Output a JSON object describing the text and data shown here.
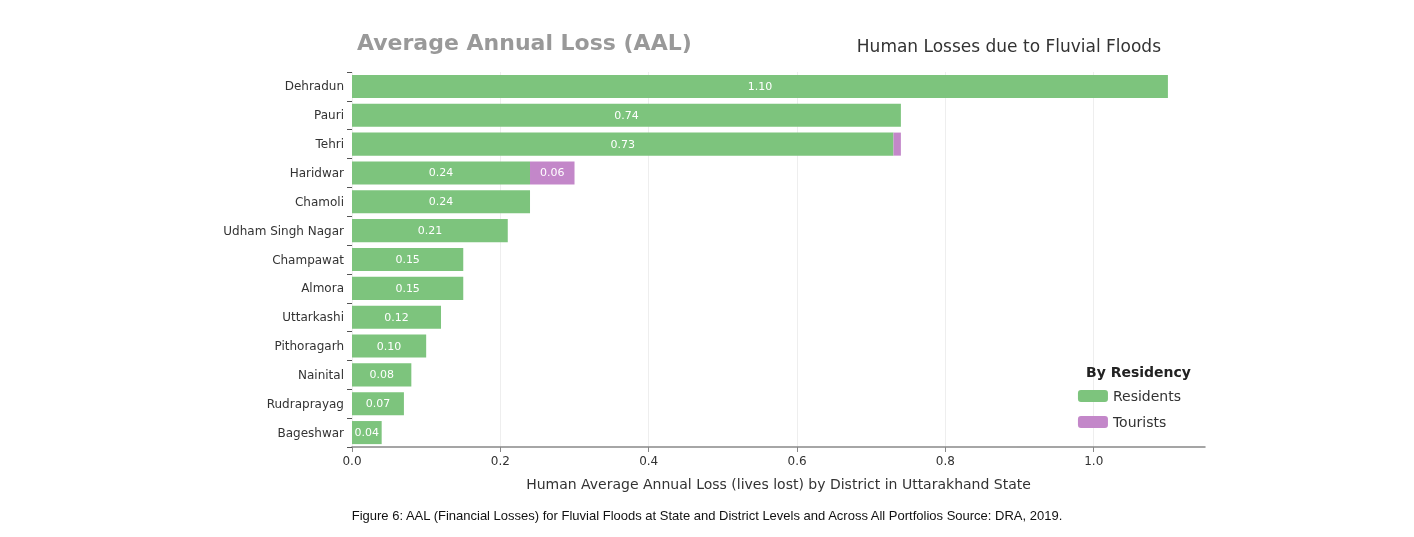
{
  "chart_data": {
    "type": "bar",
    "orientation": "horizontal",
    "stacked": true,
    "title": "Average Annual Loss (AAL)",
    "subtitle": "Human Losses due to Fluvial Floods",
    "xlabel": "Human Average Annual Loss (lives lost) by District in Uttarakhand State",
    "legend_title": "By Residency",
    "annotations": [
      "Figure 6: AAL (Financial Losses) for Fluvial Floods at State and District Levels and Across All Portfolios Source: DRA, 2019."
    ],
    "categories": [
      "Dehradun",
      "Pauri",
      "Tehri",
      "Haridwar",
      "Chamoli",
      "Udham Singh Nagar",
      "Champawat",
      "Almora",
      "Uttarkashi",
      "Pithoragarh",
      "Nainital",
      "Rudraprayag",
      "Bageshwar"
    ],
    "series": [
      {
        "name": "Residents",
        "color": "#7dc47d",
        "values": [
          1.1,
          0.74,
          0.73,
          0.24,
          0.24,
          0.21,
          0.15,
          0.15,
          0.12,
          0.1,
          0.08,
          0.07,
          0.04
        ],
        "value_labels": [
          "1.10",
          "0.74",
          "0.73",
          "0.24",
          "0.24",
          "0.21",
          "0.15",
          "0.15",
          "0.12",
          "0.10",
          "0.08",
          "0.07",
          "0.04"
        ]
      },
      {
        "name": "Tourists",
        "color": "#c387c9",
        "values": [
          null,
          null,
          0.01,
          0.06,
          null,
          null,
          null,
          null,
          null,
          null,
          null,
          null,
          null
        ],
        "value_labels": [
          null,
          null,
          null,
          "0.06",
          null,
          null,
          null,
          null,
          null,
          null,
          null,
          null,
          null
        ]
      }
    ],
    "xlim": [
      0,
      1.15
    ],
    "xticks": [
      {
        "value": 0,
        "label": "0.0"
      },
      {
        "value": 0.2,
        "label": "0.2"
      },
      {
        "value": 0.4,
        "label": "0.4"
      },
      {
        "value": 0.6,
        "label": "0.6"
      },
      {
        "value": 0.8,
        "label": "0.8"
      },
      {
        "value": 1.0,
        "label": "1.0"
      }
    ],
    "grid": "x",
    "legend": "bottom right"
  }
}
